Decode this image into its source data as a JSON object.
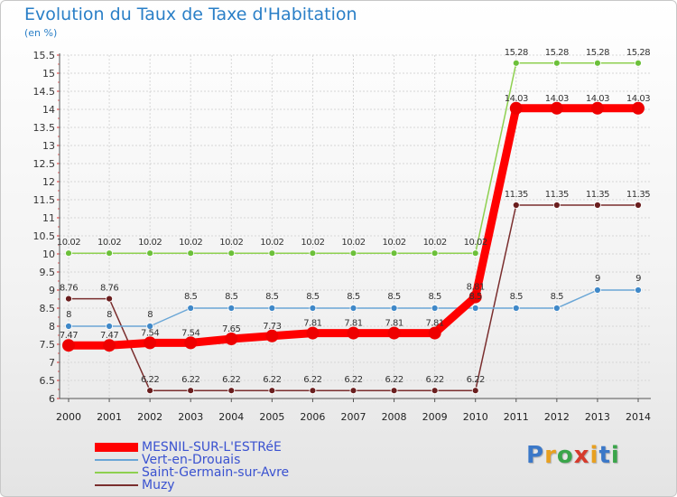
{
  "title": "Evolution du Taux de Taxe d'Habitation",
  "unit_label": "(en %)",
  "logo": {
    "letters": [
      "P",
      "r",
      "o",
      "x",
      "i",
      "t",
      "i"
    ],
    "colors": [
      "#3b78c8",
      "#e8a020",
      "#3aa54a",
      "#d63a2c",
      "#e8a020",
      "#3b78c8",
      "#3aa54a"
    ]
  },
  "chart_data": {
    "type": "line",
    "title": "Evolution du Taux de Taxe d'Habitation",
    "ylabel": "(en %)",
    "xlabel": "",
    "categories": [
      "2000",
      "2001",
      "2002",
      "2003",
      "2004",
      "2005",
      "2006",
      "2007",
      "2008",
      "2009",
      "2010",
      "2011",
      "2012",
      "2013",
      "2014"
    ],
    "ylim": [
      6,
      15.5
    ],
    "yticks": [
      "6",
      "6.5",
      "7",
      "7.5",
      "8",
      "8.5",
      "9",
      "9.5",
      "10",
      "10.5",
      "11",
      "11.5",
      "12",
      "12.5",
      "13",
      "13.5",
      "14",
      "14.5",
      "15",
      "15.5"
    ],
    "grid": true,
    "legend_position": "bottom-left",
    "series": [
      {
        "name": "Saint-Germain-sur-Avre",
        "color": "#8ed050",
        "point_color": "#6cc03a",
        "values": [
          10.02,
          10.02,
          10.02,
          10.02,
          10.02,
          10.02,
          10.02,
          10.02,
          10.02,
          10.02,
          10.02,
          15.28,
          15.28,
          15.28,
          15.28
        ],
        "labels": [
          "10.02",
          "10.02",
          "10.02",
          "10.02",
          "10.02",
          "10.02",
          "10.02",
          "10.02",
          "10.02",
          "10.02",
          "10.02",
          "15.28",
          "15.28",
          "15.28",
          "15.28"
        ]
      },
      {
        "name": "Muzy",
        "color": "#7a2e2e",
        "point_color": "#6a1e1e",
        "values": [
          8.76,
          8.76,
          6.22,
          6.22,
          6.22,
          6.22,
          6.22,
          6.22,
          6.22,
          6.22,
          6.22,
          11.35,
          11.35,
          11.35,
          11.35
        ],
        "labels": [
          "8.76",
          "8.76",
          "6.22",
          "6.22",
          "6.22",
          "6.22",
          "6.22",
          "6.22",
          "6.22",
          "6.22",
          "6.22",
          "11.35",
          "11.35",
          "11.35",
          "11.35"
        ]
      },
      {
        "name": "Vert-en-Drouais",
        "color": "#6aa6d6",
        "point_color": "#3f88c8",
        "values": [
          8,
          8,
          8,
          8.5,
          8.5,
          8.5,
          8.5,
          8.5,
          8.5,
          8.5,
          8.5,
          8.5,
          8.5,
          9,
          9
        ],
        "labels": [
          "8",
          "8",
          "8",
          "8.5",
          "8.5",
          "8.5",
          "8.5",
          "8.5",
          "8.5",
          "8.5",
          "8.5",
          "8.5",
          "8.5",
          "9",
          "9"
        ]
      },
      {
        "name": "MESNIL-SUR-L'ESTRéE",
        "color": "#ff0000",
        "point_color": "#ee0000",
        "values": [
          7.47,
          7.47,
          7.54,
          7.54,
          7.65,
          7.73,
          7.81,
          7.81,
          7.81,
          7.81,
          8.81,
          14.03,
          14.03,
          14.03,
          14.03
        ],
        "labels": [
          "7.47",
          "7.47",
          "7.54",
          "7.54",
          "7.65",
          "7.73",
          "7.81",
          "7.81",
          "7.81",
          "7.81",
          "8.81",
          "14.03",
          "14.03",
          "14.03",
          "14.03"
        ]
      }
    ],
    "legend_order": [
      "MESNIL-SUR-L'ESTRéE",
      "Vert-en-Drouais",
      "Saint-Germain-sur-Avre",
      "Muzy"
    ]
  }
}
